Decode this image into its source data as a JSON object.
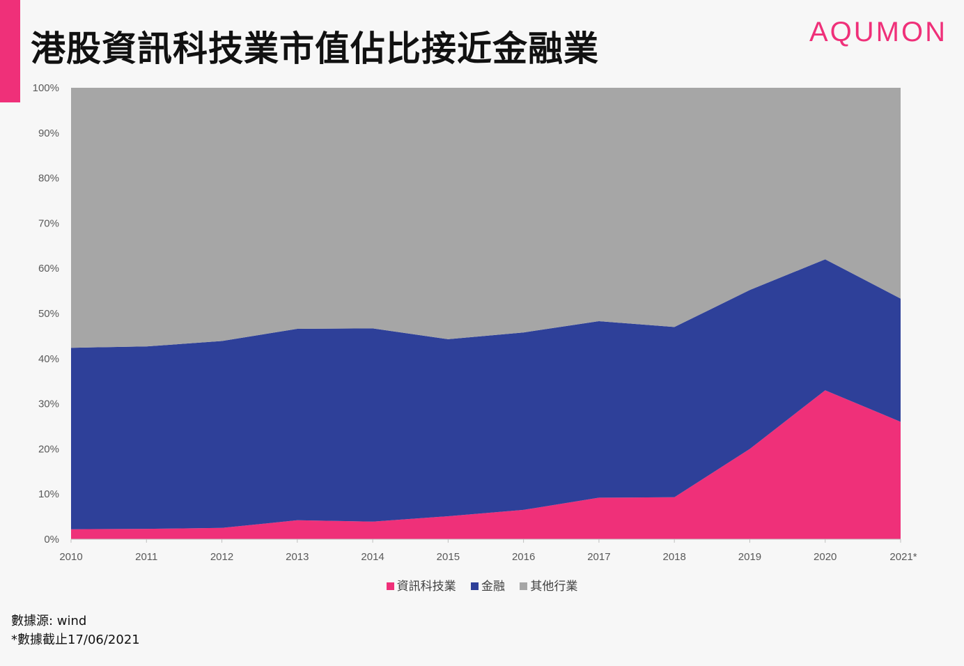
{
  "title": "港股資訊科技業市值佔比接近金融業",
  "logo": "AQUMON",
  "source_line1": "數據源: wind",
  "source_line2": "*數據截止17/06/2021",
  "chart_data": {
    "type": "area",
    "stacked": true,
    "categories": [
      "2010",
      "2011",
      "2012",
      "2013",
      "2014",
      "2015",
      "2016",
      "2017",
      "2018",
      "2019",
      "2020",
      "2021*"
    ],
    "y_ticks": [
      "0%",
      "10%",
      "20%",
      "30%",
      "40%",
      "50%",
      "60%",
      "70%",
      "80%",
      "90%",
      "100%"
    ],
    "ylim": [
      0,
      100
    ],
    "series": [
      {
        "name": "資訊科技業",
        "color": "#ef3079",
        "values": [
          2.2,
          2.3,
          2.5,
          4.2,
          3.9,
          5.1,
          6.5,
          9.2,
          9.3,
          20.0,
          33.0,
          26.0
        ]
      },
      {
        "name": "金融",
        "color": "#2e4099",
        "values": [
          40.2,
          40.4,
          41.4,
          42.4,
          42.8,
          39.2,
          39.3,
          39.1,
          37.7,
          35.2,
          29.0,
          27.3
        ]
      },
      {
        "name": "其他行業",
        "color": "#a6a6a6",
        "values": [
          57.6,
          57.3,
          56.1,
          53.4,
          53.3,
          55.7,
          54.2,
          51.7,
          53.0,
          44.8,
          38.0,
          46.7
        ]
      }
    ],
    "legend_position": "bottom",
    "grid": false
  }
}
